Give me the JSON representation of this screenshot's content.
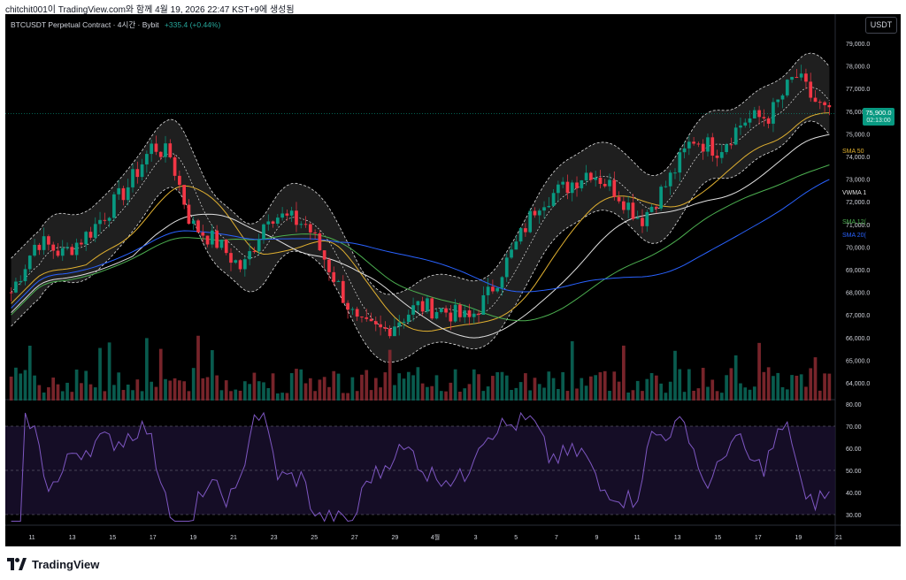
{
  "header": {
    "snapshot_text": "chitchit001이 TradingView.com와 함께 4월 19, 2026 22:47 KST+9에 생성됨"
  },
  "chart": {
    "symbol_line": "BTCUSDT Perpetual Contract · 4시간 · Bybit",
    "change": "+335.4 (+0.44%)",
    "currency_button": "USDT",
    "price_axis": [
      "79,000.0",
      "78,000.0",
      "77,000.0",
      "76,000.0",
      "75,000.0",
      "74,000.0",
      "73,000.0",
      "72,000.0",
      "71,000.0",
      "70,000.0",
      "69,000.0",
      "68,000.0",
      "67,000.0",
      "66,000.0",
      "65,000.0",
      "64,000.0"
    ],
    "current_price": "75,900.0",
    "countdown": "02:13:00",
    "indicator_labels": {
      "sma50": "SMA 50",
      "vwma": "VWMA 1",
      "sma120": "SMA 12(",
      "sma200": "SMA 20("
    },
    "rsi_axis": [
      "80.00",
      "70.00",
      "60.00",
      "50.00",
      "40.00",
      "30.00"
    ],
    "time_axis": [
      "11",
      "13",
      "15",
      "17",
      "19",
      "21",
      "23",
      "25",
      "27",
      "29",
      "4월",
      "3",
      "5",
      "7",
      "9",
      "11",
      "13",
      "15",
      "17",
      "19",
      "21"
    ],
    "colors": {
      "up": "#089981",
      "down": "#f23645",
      "sma50": "#e0b030",
      "vwma": "#e0e0e0",
      "sma120": "#4caf50",
      "sma200": "#2962ff",
      "rsi": "#7e57c2"
    }
  },
  "footer": {
    "brand": "TradingView"
  }
}
